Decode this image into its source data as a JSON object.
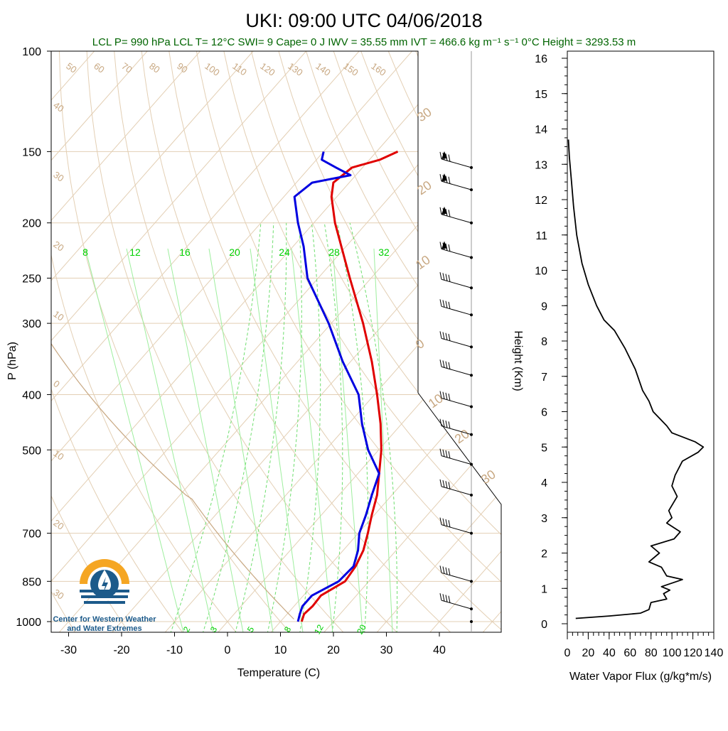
{
  "title": "UKI: 09:00 UTC 04/06/2018",
  "subtitle": "LCL P= 990 hPa  LCL T= 12°C  SWI= 9  Cape= 0 J  IWV = 35.55 mm  IVT = 466.6 kg m⁻¹ s⁻¹  0°C Height = 3293.53 m",
  "logo": {
    "line1": "Center for Western Weather",
    "line2": "and Water Extremes",
    "colors": {
      "orange": "#f5a623",
      "blue": "#1c5a8a"
    }
  },
  "chart_data": [
    {
      "type": "line",
      "subtype": "skew-t-log-p",
      "xlabel": "Temperature (C)",
      "ylabel": "P (hPa)",
      "xlim": [
        -34,
        50
      ],
      "ylim": [
        1040,
        100
      ],
      "y_scale": "log",
      "x_ticks": [
        -30,
        -20,
        -10,
        0,
        10,
        20,
        30,
        40
      ],
      "p_ticks": [
        100,
        150,
        200,
        250,
        300,
        400,
        500,
        700,
        850,
        1000
      ],
      "dry_adiabat_labels": [
        "50",
        "60",
        "70",
        "80",
        "90",
        "100",
        "110",
        "120",
        "130",
        "140",
        "150",
        "160"
      ],
      "isotherm_edge_labels": [
        "40",
        "30",
        "20",
        "10",
        "0",
        "10",
        "20",
        "30"
      ],
      "right_edge_labels": [
        "30",
        "20",
        "10",
        "0",
        "10",
        "20",
        "30"
      ],
      "mixing_ratio_labels_top": [
        "8",
        "12",
        "16",
        "20",
        "24",
        "28",
        "32"
      ],
      "mixing_ratio_labels_bottom": [
        "2",
        "3",
        "5",
        "8",
        "12",
        "20"
      ],
      "series": [
        {
          "color": "#e00000",
          "points": [
            {
              "p": 1000,
              "t": 14.0
            },
            {
              "p": 970,
              "t": 13.2
            },
            {
              "p": 940,
              "t": 13.5
            },
            {
              "p": 900,
              "t": 13.3
            },
            {
              "p": 850,
              "t": 15.5
            },
            {
              "p": 800,
              "t": 15.0
            },
            {
              "p": 750,
              "t": 13.8
            },
            {
              "p": 700,
              "t": 11.8
            },
            {
              "p": 650,
              "t": 9.5
            },
            {
              "p": 600,
              "t": 7.2
            },
            {
              "p": 550,
              "t": 4.0
            },
            {
              "p": 500,
              "t": 0.5
            },
            {
              "p": 450,
              "t": -4.0
            },
            {
              "p": 400,
              "t": -9.5
            },
            {
              "p": 350,
              "t": -16.0
            },
            {
              "p": 300,
              "t": -24.0
            },
            {
              "p": 250,
              "t": -34.0
            },
            {
              "p": 200,
              "t": -46.0
            },
            {
              "p": 180,
              "t": -51.0
            },
            {
              "p": 170,
              "t": -53.0
            },
            {
              "p": 160,
              "t": -52.0
            },
            {
              "p": 155,
              "t": -48.0
            },
            {
              "p": 150,
              "t": -46.0
            }
          ]
        },
        {
          "color": "#0000e0",
          "points": [
            {
              "p": 1000,
              "t": 13.3
            },
            {
              "p": 970,
              "t": 12.4
            },
            {
              "p": 940,
              "t": 11.6
            },
            {
              "p": 900,
              "t": 11.6
            },
            {
              "p": 850,
              "t": 14.3
            },
            {
              "p": 800,
              "t": 14.6
            },
            {
              "p": 750,
              "t": 12.8
            },
            {
              "p": 700,
              "t": 10.2
            },
            {
              "p": 650,
              "t": 8.4
            },
            {
              "p": 600,
              "t": 6.2
            },
            {
              "p": 550,
              "t": 4.0
            },
            {
              "p": 500,
              "t": -2.0
            },
            {
              "p": 450,
              "t": -7.5
            },
            {
              "p": 400,
              "t": -13.0
            },
            {
              "p": 350,
              "t": -21.5
            },
            {
              "p": 300,
              "t": -30.5
            },
            {
              "p": 250,
              "t": -42.0
            },
            {
              "p": 220,
              "t": -48.0
            },
            {
              "p": 200,
              "t": -53.0
            },
            {
              "p": 180,
              "t": -58.0
            },
            {
              "p": 170,
              "t": -57.0
            },
            {
              "p": 165,
              "t": -51.0
            },
            {
              "p": 160,
              "t": -55.0
            },
            {
              "p": 155,
              "t": -59.0
            },
            {
              "p": 150,
              "t": -60.0
            }
          ]
        }
      ],
      "wind_barbs_p": [
        1000,
        950,
        850,
        700,
        600,
        530,
        470,
        420,
        370,
        330,
        290,
        260,
        230,
        200,
        175,
        160
      ]
    },
    {
      "type": "line",
      "xlabel": "Water Vapor Flux (g/kg*m/s)",
      "ylabel": "Height (Km)",
      "xlim": [
        0,
        140
      ],
      "ylim": [
        0,
        16.5
      ],
      "x_ticks": [
        0,
        20,
        40,
        60,
        80,
        100,
        120,
        140
      ],
      "y_ticks": [
        0,
        1,
        2,
        3,
        4,
        5,
        6,
        7,
        8,
        9,
        10,
        11,
        12,
        13,
        14,
        15,
        16
      ],
      "series": [
        {
          "color": "#000000",
          "points": [
            {
              "x": 8,
              "y": 0.15
            },
            {
              "x": 40,
              "y": 0.22
            },
            {
              "x": 70,
              "y": 0.3
            },
            {
              "x": 78,
              "y": 0.4
            },
            {
              "x": 80,
              "y": 0.6
            },
            {
              "x": 95,
              "y": 0.7
            },
            {
              "x": 92,
              "y": 0.85
            },
            {
              "x": 98,
              "y": 0.95
            },
            {
              "x": 90,
              "y": 1.05
            },
            {
              "x": 110,
              "y": 1.25
            },
            {
              "x": 95,
              "y": 1.35
            },
            {
              "x": 90,
              "y": 1.6
            },
            {
              "x": 78,
              "y": 1.75
            },
            {
              "x": 88,
              "y": 2.0
            },
            {
              "x": 80,
              "y": 2.2
            },
            {
              "x": 102,
              "y": 2.4
            },
            {
              "x": 108,
              "y": 2.6
            },
            {
              "x": 95,
              "y": 2.85
            },
            {
              "x": 100,
              "y": 3.0
            },
            {
              "x": 97,
              "y": 3.2
            },
            {
              "x": 105,
              "y": 3.6
            },
            {
              "x": 100,
              "y": 3.9
            },
            {
              "x": 103,
              "y": 4.2
            },
            {
              "x": 110,
              "y": 4.6
            },
            {
              "x": 125,
              "y": 4.85
            },
            {
              "x": 130,
              "y": 5.0
            },
            {
              "x": 122,
              "y": 5.15
            },
            {
              "x": 100,
              "y": 5.4
            },
            {
              "x": 95,
              "y": 5.6
            },
            {
              "x": 82,
              "y": 6.0
            },
            {
              "x": 78,
              "y": 6.3
            },
            {
              "x": 72,
              "y": 6.6
            },
            {
              "x": 65,
              "y": 7.2
            },
            {
              "x": 55,
              "y": 7.8
            },
            {
              "x": 45,
              "y": 8.3
            },
            {
              "x": 35,
              "y": 8.6
            },
            {
              "x": 28,
              "y": 9.0
            },
            {
              "x": 20,
              "y": 9.6
            },
            {
              "x": 14,
              "y": 10.2
            },
            {
              "x": 9,
              "y": 11.0
            },
            {
              "x": 6,
              "y": 11.8
            },
            {
              "x": 4,
              "y": 12.5
            },
            {
              "x": 2,
              "y": 13.2
            },
            {
              "x": 1,
              "y": 13.7
            }
          ]
        }
      ]
    }
  ]
}
